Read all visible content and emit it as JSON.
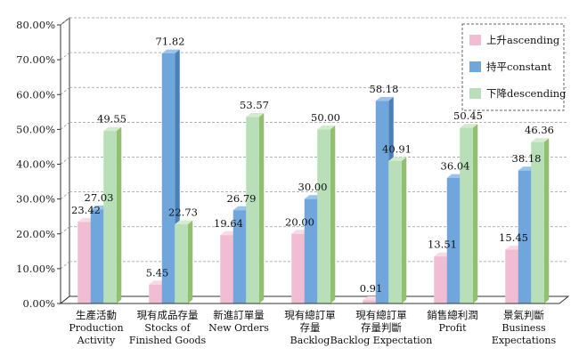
{
  "chart_data": {
    "type": "bar",
    "categories": [
      {
        "zh": "生產活動",
        "en": [
          "Production",
          "Activity"
        ]
      },
      {
        "zh": "現有成品存量",
        "en": [
          "Stocks of",
          "Finished Goods"
        ]
      },
      {
        "zh": "新進訂單量",
        "en": [
          "New Orders"
        ]
      },
      {
        "zh": "現有總訂單存量",
        "zh_lines": [
          "現有總訂單",
          "存量"
        ],
        "en": [
          "Backlog"
        ]
      },
      {
        "zh": "現有總訂單存量判斷",
        "zh_lines": [
          "現有總訂單",
          "存量判斷"
        ],
        "en": [
          "Backlog Expectation"
        ]
      },
      {
        "zh": "銷售總利潤",
        "en": [
          "Profit"
        ]
      },
      {
        "zh": "景氣判斷",
        "en": [
          "Business",
          "Expectations"
        ]
      }
    ],
    "series": [
      {
        "name": "上升ascending",
        "color": "#f2bdd3",
        "side_color": "#d893b0",
        "top_color": "#f8d9e6",
        "values": [
          23.42,
          5.45,
          19.64,
          20.0,
          0.91,
          13.51,
          15.45
        ],
        "labels": [
          "23.42",
          "5.45",
          "19.64",
          "20.00",
          "0.91",
          "13.51",
          "15.45"
        ]
      },
      {
        "name": "持平constant",
        "color": "#6fa7dc",
        "side_color": "#4a80b9",
        "top_color": "#9cc4ea",
        "values": [
          27.03,
          71.82,
          26.79,
          30.0,
          58.18,
          36.04,
          38.18
        ],
        "labels": [
          "27.03",
          "71.82",
          "26.79",
          "30.00",
          "58.18",
          "36.04",
          "38.18"
        ]
      },
      {
        "name": "下降descending",
        "color": "#b8dfb8",
        "side_color": "#92c06c",
        "top_color": "#d2eccd",
        "values": [
          49.55,
          22.73,
          53.57,
          50.0,
          40.91,
          50.45,
          46.36
        ],
        "labels": [
          "49.55",
          "22.73",
          "53.57",
          "50.00",
          "40.91",
          "50.45",
          "46.36"
        ]
      }
    ],
    "y_ticks": [
      "0.00%",
      "10.00%",
      "20.00%",
      "30.00%",
      "40.00%",
      "50.00%",
      "60.00%",
      "70.00%",
      "80.00%"
    ],
    "ylim": [
      0,
      80
    ],
    "grid": true,
    "legend_position": "top-right",
    "style": "3d"
  }
}
